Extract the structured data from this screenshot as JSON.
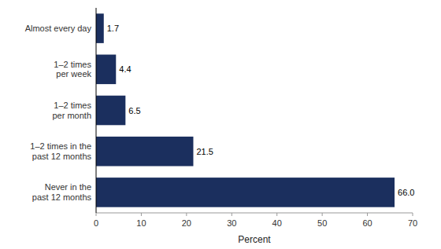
{
  "chart_data": {
    "type": "bar",
    "orientation": "horizontal",
    "categories": [
      "Never in the\npast 12 months",
      "1–2 times in the\npast 12 months",
      "1–2 times\nper month",
      "1–2 times\nper week",
      "Almost every day"
    ],
    "values": [
      66.0,
      21.5,
      6.5,
      4.4,
      1.7
    ],
    "value_labels": [
      "66.0",
      "21.5",
      "6.5",
      "4.4",
      "1.7"
    ],
    "data_labels": true,
    "color": "#1b2f5e",
    "xlabel": "Percent",
    "xlim": [
      0,
      70
    ],
    "xticks": [
      0,
      10,
      20,
      30,
      40,
      50,
      60,
      70
    ],
    "grid": false
  }
}
